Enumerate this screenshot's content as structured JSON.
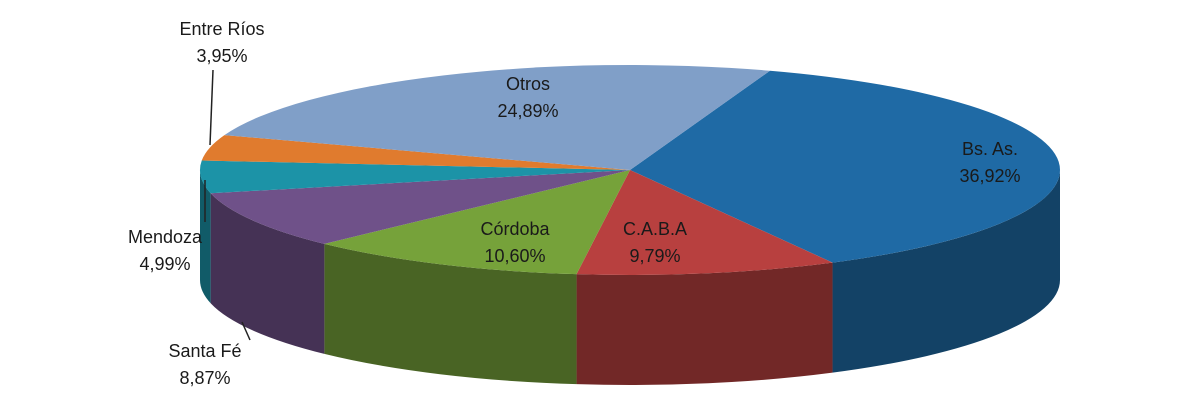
{
  "chart_data": {
    "type": "pie",
    "categories": [
      "Bs. As.",
      "C.A.B.A",
      "Córdoba",
      "Santa Fé",
      "Mendoza",
      "Entre Ríos",
      "Otros"
    ],
    "values": [
      36.92,
      9.79,
      10.6,
      8.87,
      4.99,
      3.95,
      24.89
    ],
    "value_labels": [
      "36,92%",
      "9,79%",
      "10,60%",
      "8,87%",
      "4,99%",
      "3,95%",
      "24,89%"
    ],
    "colors": [
      "#1f6aa5",
      "#b8403f",
      "#76a23a",
      "#6f5189",
      "#1c93a7",
      "#e07b2e",
      "#809fc8"
    ]
  }
}
